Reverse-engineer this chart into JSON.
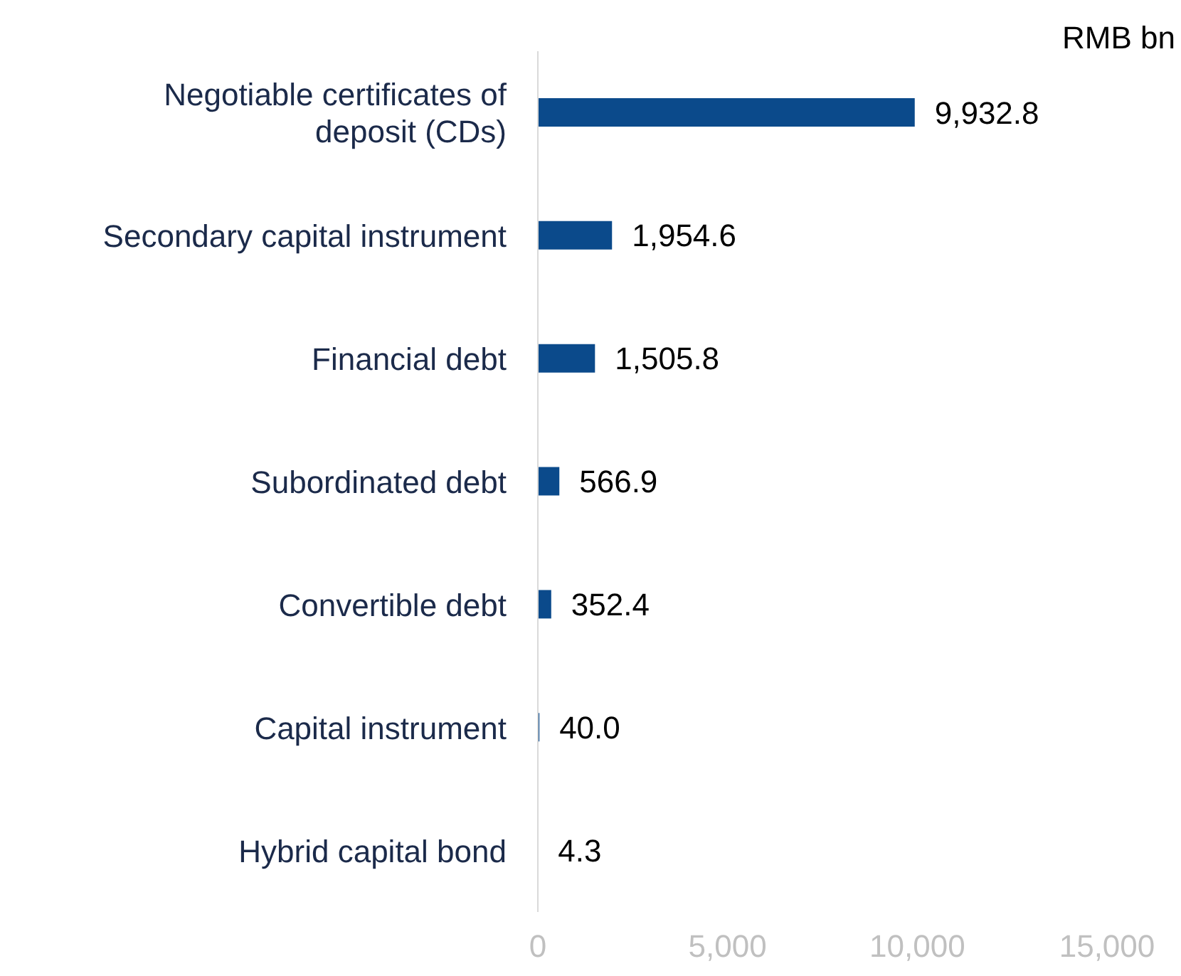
{
  "chart_data": {
    "type": "bar",
    "orientation": "horizontal",
    "categories": [
      "Negotiable certificates of deposit (CDs)",
      "Secondary capital instrument",
      "Financial debt",
      "Subordinated debt",
      "Convertible debt",
      "Capital instrument",
      "Hybrid capital bond"
    ],
    "values": [
      9932.8,
      1954.6,
      1505.8,
      566.9,
      352.4,
      40.0,
      4.3
    ],
    "value_labels": [
      "9,932.8",
      "1,954.6",
      "1,505.8",
      "566.9",
      "352.4",
      "40.0",
      "4.3"
    ],
    "color": "#0b4a8b",
    "xlim": [
      0,
      15000
    ],
    "xticks": [
      0,
      {
        "value": 5000,
        "label": "5,000"
      },
      {
        "value": 10000,
        "label": "10,000"
      },
      {
        "value": 15000,
        "label": "15,000"
      }
    ],
    "annotations": [
      "RMB bn"
    ],
    "grid": false,
    "legend": false
  }
}
